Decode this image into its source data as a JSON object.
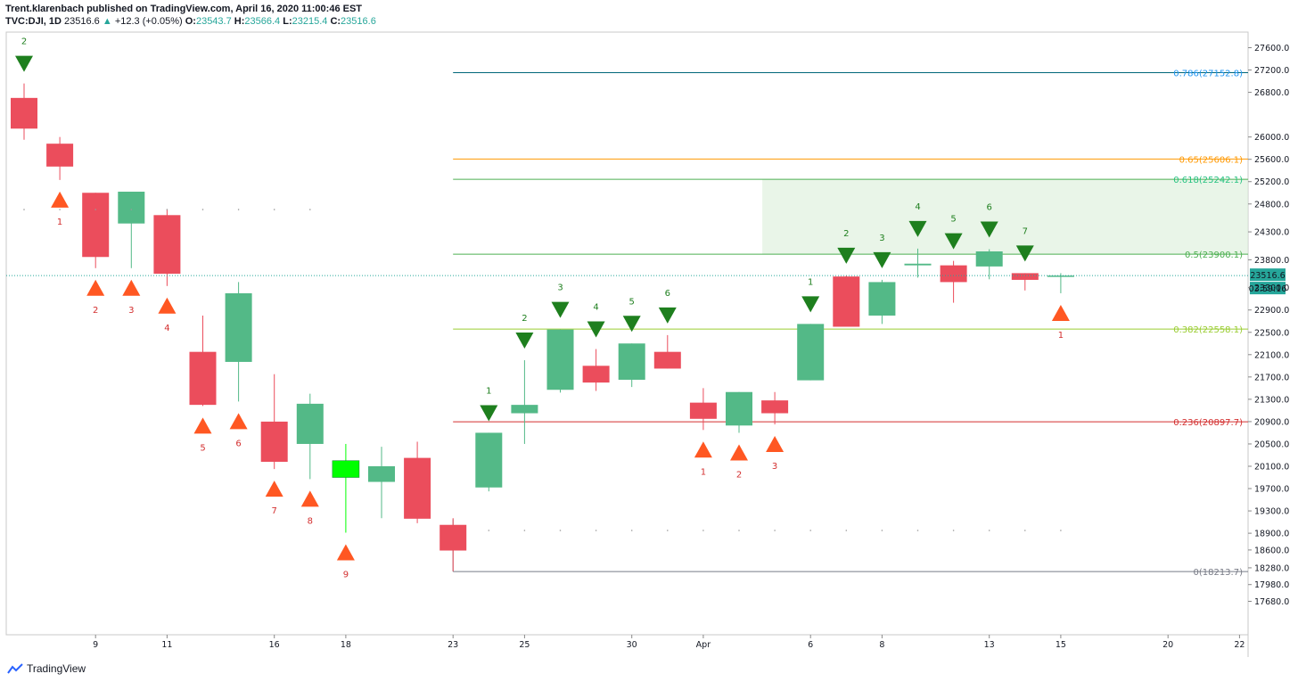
{
  "header": {
    "line1": "Trent.klarenbach published on TradingView.com, April 16, 2020 11:00:46 EST",
    "symbol": "TVC:DJI, 1D",
    "last": "23516.6",
    "change": "+12.3 (+0.05%)",
    "o_label": "O:",
    "o": "23543.7",
    "h_label": "H:",
    "h": "23566.4",
    "l_label": "L:",
    "l": "23215.4",
    "c_label": "C:",
    "c": "23516.6"
  },
  "footer": {
    "brand": "TradingView"
  },
  "chart_data": {
    "type": "candlestick",
    "y_ticks": [
      27600,
      27200,
      26800,
      26000,
      25600,
      25200,
      24800,
      24300,
      23800,
      23300,
      22900,
      22500,
      22100,
      21700,
      21300,
      20900,
      20500,
      20100,
      19700,
      19300,
      18900,
      18600,
      18280,
      17980,
      17680
    ],
    "x_ticks": [
      "9",
      "11",
      "16",
      "18",
      "23",
      "25",
      "30",
      "Apr",
      "6",
      "8",
      "13",
      "15",
      "20",
      "22"
    ],
    "x_tick_index": [
      2,
      4,
      7,
      9,
      12,
      14,
      17,
      19,
      22,
      24,
      27,
      29,
      32,
      34
    ],
    "candles": [
      {
        "o": 26700,
        "h": 26960,
        "l": 25950,
        "c": 26150
      },
      {
        "o": 25880,
        "h": 26000,
        "l": 25230,
        "c": 25470
      },
      {
        "o": 25000,
        "h": 25000,
        "l": 23650,
        "c": 23850
      },
      {
        "o": 24450,
        "h": 25000,
        "l": 23650,
        "c": 25020
      },
      {
        "o": 24600,
        "h": 24700,
        "l": 23330,
        "c": 23550
      },
      {
        "o": 22150,
        "h": 22800,
        "l": 21180,
        "c": 21200
      },
      {
        "o": 21970,
        "h": 23400,
        "l": 21260,
        "c": 23200
      },
      {
        "o": 20900,
        "h": 21750,
        "l": 20050,
        "c": 20180
      },
      {
        "o": 20500,
        "h": 21400,
        "l": 19870,
        "c": 21220
      },
      {
        "o": 20200,
        "h": 20500,
        "l": 18910,
        "c": 19900,
        "color": "#00ff00"
      },
      {
        "o": 19820,
        "h": 20450,
        "l": 19170,
        "c": 20100
      },
      {
        "o": 20250,
        "h": 20540,
        "l": 19080,
        "c": 19160
      },
      {
        "o": 19050,
        "h": 19170,
        "l": 18220,
        "c": 18590
      },
      {
        "o": 19720,
        "h": 20700,
        "l": 19650,
        "c": 20700
      },
      {
        "o": 21050,
        "h": 22000,
        "l": 20500,
        "c": 21200
      },
      {
        "o": 21470,
        "h": 22550,
        "l": 21420,
        "c": 22550
      },
      {
        "o": 21900,
        "h": 22200,
        "l": 21450,
        "c": 21600
      },
      {
        "o": 21650,
        "h": 22300,
        "l": 21520,
        "c": 22300
      },
      {
        "o": 22150,
        "h": 22450,
        "l": 21850,
        "c": 21850
      },
      {
        "o": 21240,
        "h": 21500,
        "l": 20750,
        "c": 20950
      },
      {
        "o": 20830,
        "h": 21430,
        "l": 20700,
        "c": 21430
      },
      {
        "o": 21280,
        "h": 21430,
        "l": 20850,
        "c": 21050
      },
      {
        "o": 21640,
        "h": 22650,
        "l": 21640,
        "c": 22650
      },
      {
        "o": 23500,
        "h": 23520,
        "l": 22600,
        "c": 22600
      },
      {
        "o": 22800,
        "h": 23440,
        "l": 22650,
        "c": 23400
      },
      {
        "o": 23700,
        "h": 24000,
        "l": 23480,
        "c": 23730
      },
      {
        "o": 23700,
        "h": 23780,
        "l": 23030,
        "c": 23400
      },
      {
        "o": 23680,
        "h": 23990,
        "l": 23450,
        "c": 23950
      },
      {
        "o": 23560,
        "h": 23560,
        "l": 23250,
        "c": 23440
      },
      {
        "o": 23500,
        "h": 23560,
        "l": 23200,
        "c": 23517
      }
    ],
    "fib_levels": [
      {
        "ratio": "0.786",
        "price": "27152.8",
        "label": "0.786(27152.8)",
        "y": 27152.8,
        "color": "#2196f3",
        "line": "#00677a"
      },
      {
        "ratio": "0.65",
        "price": "25606.1",
        "label": "0.65(25606.1)",
        "y": 25606.1,
        "color": "#ff9800",
        "line": "#ff9800"
      },
      {
        "ratio": "0.618",
        "price": "25242.1",
        "label": "0.618(25242.1)",
        "y": 25242.1,
        "color": "#26c281",
        "line": "#4caf50"
      },
      {
        "ratio": "0.5",
        "price": "23900.1",
        "label": "0.5(23900.1)",
        "y": 23900.1,
        "color": "#4caf50",
        "line": "#4caf50"
      },
      {
        "ratio": "0.382",
        "price": "22558.1",
        "label": "0.382(22558.1)",
        "y": 22558.1,
        "color": "#9acd32",
        "line": "#9acd32"
      },
      {
        "ratio": "0.236",
        "price": "20897.7",
        "label": "0.236(20897.7)",
        "y": 20897.7,
        "color": "#d32f2f",
        "line": "#d32f2f"
      },
      {
        "ratio": "0",
        "price": "18213.7",
        "label": "0(18213.7)",
        "y": 18213.7,
        "color": "#787b86",
        "line": "#787b86"
      }
    ],
    "fib_start_index": 12,
    "zone": {
      "from_index": 21,
      "y_high": 25242.1,
      "y_low": 23900.1,
      "color": "#dbeed9"
    },
    "sell_setup": [
      {
        "i": 0,
        "n": "2"
      },
      {
        "i": 13,
        "n": "1"
      },
      {
        "i": 14,
        "n": "2"
      },
      {
        "i": 15,
        "n": "3"
      },
      {
        "i": 16,
        "n": "4"
      },
      {
        "i": 17,
        "n": "5"
      },
      {
        "i": 18,
        "n": "6"
      },
      {
        "i": 22,
        "n": "1"
      },
      {
        "i": 23,
        "n": "2"
      },
      {
        "i": 24,
        "n": "3"
      },
      {
        "i": 25,
        "n": "4"
      },
      {
        "i": 26,
        "n": "5"
      },
      {
        "i": 27,
        "n": "6"
      },
      {
        "i": 28,
        "n": "7"
      }
    ],
    "buy_setup": [
      {
        "i": 1,
        "n": "1"
      },
      {
        "i": 2,
        "n": "2"
      },
      {
        "i": 3,
        "n": "3"
      },
      {
        "i": 4,
        "n": "4"
      },
      {
        "i": 5,
        "n": "5"
      },
      {
        "i": 6,
        "n": "6"
      },
      {
        "i": 7,
        "n": "7"
      },
      {
        "i": 8,
        "n": "8"
      },
      {
        "i": 9,
        "n": "9"
      },
      {
        "i": 19,
        "n": "1"
      },
      {
        "i": 20,
        "n": "2"
      },
      {
        "i": 21,
        "n": "3"
      },
      {
        "i": 29,
        "n": "1"
      }
    ],
    "current_price": {
      "value": 23516.6,
      "label": "23516.6",
      "countdown": "03:59:16"
    }
  }
}
